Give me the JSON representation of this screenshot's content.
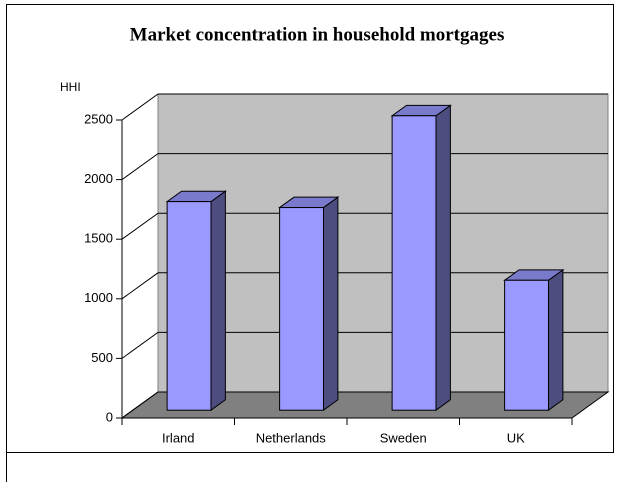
{
  "chart_data": {
    "type": "bar",
    "title": "Market concentration in household mortgages",
    "y_axis_label": "HHI",
    "categories": [
      "Irland",
      "Netherlands",
      "Sweden",
      "UK"
    ],
    "values": [
      1750,
      1700,
      2470,
      1090
    ],
    "color": "#9999ff",
    "ylim": [
      0,
      2500
    ],
    "yticks": [
      0,
      500,
      1000,
      1500,
      2000,
      2500
    ],
    "grid": true
  }
}
